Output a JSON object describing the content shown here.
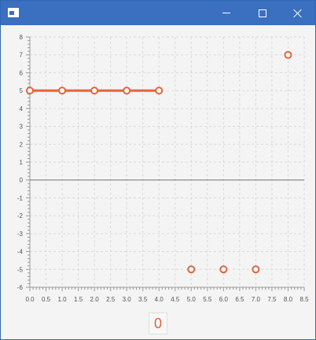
{
  "window": {
    "title": ""
  },
  "colors": {
    "titlebar": "#3b6fc0",
    "series": "#e1633b",
    "axis": "#707070",
    "grid": "#d9d9d9",
    "background": "#f4f4f4"
  },
  "icons": {
    "app": "window-icon",
    "minimize": "minimize-icon",
    "maximize": "maximize-icon",
    "close": "close-icon"
  },
  "bottom_label": "0",
  "chart_data": {
    "type": "line",
    "title": "",
    "xlabel": "",
    "ylabel": "",
    "xlim": [
      0,
      8.5
    ],
    "ylim": [
      -6,
      8
    ],
    "x_ticks": [
      "0.0",
      "0.5",
      "1.0",
      "1.5",
      "2.0",
      "2.5",
      "3.0",
      "3.5",
      "4.0",
      "4.5",
      "5.0",
      "5.5",
      "6.0",
      "6.5",
      "7.0",
      "7.5",
      "8.0",
      "8.5"
    ],
    "y_ticks": [
      "8",
      "7",
      "6",
      "5",
      "4",
      "3",
      "2",
      "1",
      "0",
      "-1",
      "-2",
      "-3",
      "-4",
      "-5",
      "-6"
    ],
    "grid": true,
    "series": [
      {
        "line_segments": [
          [
            0,
            1,
            2,
            3,
            4
          ]
        ],
        "points": [
          {
            "x": 0,
            "y": 5
          },
          {
            "x": 1,
            "y": 5
          },
          {
            "x": 2,
            "y": 5
          },
          {
            "x": 3,
            "y": 5
          },
          {
            "x": 4,
            "y": 5
          },
          {
            "x": 5,
            "y": -5
          },
          {
            "x": 6,
            "y": -5
          },
          {
            "x": 7,
            "y": -5
          },
          {
            "x": 8,
            "y": 7
          }
        ]
      }
    ]
  }
}
